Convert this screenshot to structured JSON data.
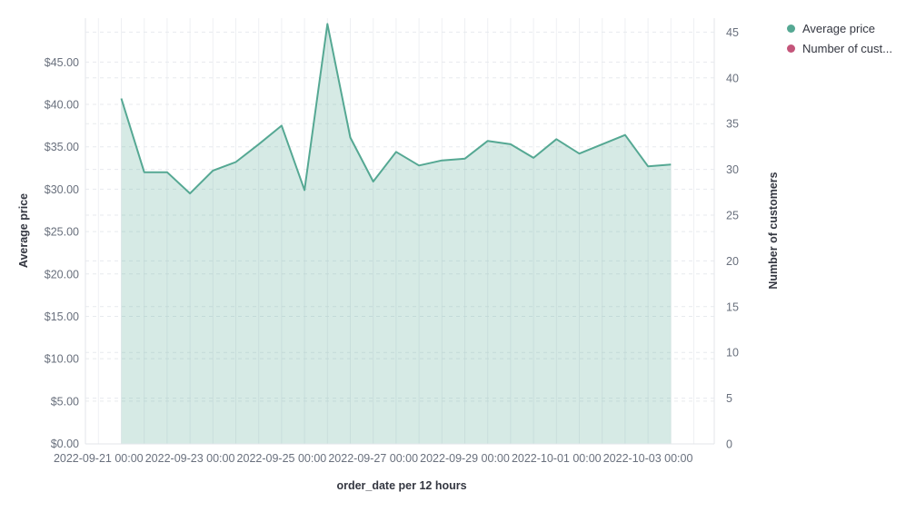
{
  "legend": {
    "position": "top-right",
    "items": [
      {
        "label": "Average price",
        "color": "#55A893"
      },
      {
        "label": "Number of cust...",
        "color": "#C4557A"
      }
    ]
  },
  "chart_data": {
    "type": "area",
    "title": "",
    "xlabel": "order_date per 12 hours",
    "grid": true,
    "colors": {
      "line": "#55A893",
      "fill": "rgba(85,168,147,0.24)",
      "tick_text": "#69707D",
      "title_text": "#343741",
      "gridline_vertical": "#eef0f3",
      "gridline_dashed": "#e7eaee",
      "axis_edge": "#e3e6ea"
    },
    "left_axis": {
      "title": "Average price",
      "ticks": [
        "$0.00",
        "$5.00",
        "$10.00",
        "$15.00",
        "$20.00",
        "$25.00",
        "$30.00",
        "$35.00",
        "$40.00",
        "$45.00"
      ],
      "tick_values": [
        0,
        5,
        10,
        15,
        20,
        25,
        30,
        35,
        40,
        45
      ],
      "range": [
        0,
        50.2
      ]
    },
    "right_axis": {
      "title": "Number of customers",
      "ticks": [
        "0",
        "5",
        "10",
        "15",
        "20",
        "25",
        "30",
        "35",
        "40",
        "45"
      ],
      "tick_values": [
        0,
        5,
        10,
        15,
        20,
        25,
        30,
        35,
        40,
        45
      ],
      "range": [
        0,
        46.5
      ]
    },
    "x_ticks": [
      "2022-09-21 00:00",
      "2022-09-23 00:00",
      "2022-09-25 00:00",
      "2022-09-27 00:00",
      "2022-09-29 00:00",
      "2022-10-01 00:00",
      "2022-10-03 00:00"
    ],
    "x": [
      "2022-09-21 12:00",
      "2022-09-22 00:00",
      "2022-09-22 12:00",
      "2022-09-23 00:00",
      "2022-09-23 12:00",
      "2022-09-24 00:00",
      "2022-09-24 12:00",
      "2022-09-25 00:00",
      "2022-09-25 12:00",
      "2022-09-26 00:00",
      "2022-09-26 12:00",
      "2022-09-27 00:00",
      "2022-09-27 12:00",
      "2022-09-28 00:00",
      "2022-09-28 12:00",
      "2022-09-29 00:00",
      "2022-09-29 12:00",
      "2022-09-30 00:00",
      "2022-09-30 12:00",
      "2022-10-01 00:00",
      "2022-10-01 12:00",
      "2022-10-02 00:00",
      "2022-10-02 12:00",
      "2022-10-03 00:00",
      "2022-10-03 12:00"
    ],
    "series": [
      {
        "name": "Average price",
        "axis": "left",
        "type": "area",
        "color": "#55A893",
        "values": [
          40.7,
          32.0,
          32.0,
          29.5,
          32.2,
          33.2,
          35.3,
          37.5,
          29.9,
          49.5,
          36.1,
          30.9,
          34.4,
          32.8,
          33.4,
          33.6,
          35.7,
          35.3,
          33.7,
          35.9,
          34.2,
          35.3,
          36.4,
          32.7,
          32.9
        ]
      },
      {
        "name": "Number of customers",
        "axis": "right",
        "type": "line",
        "color": "#C4557A",
        "visible": false,
        "values": []
      }
    ]
  }
}
